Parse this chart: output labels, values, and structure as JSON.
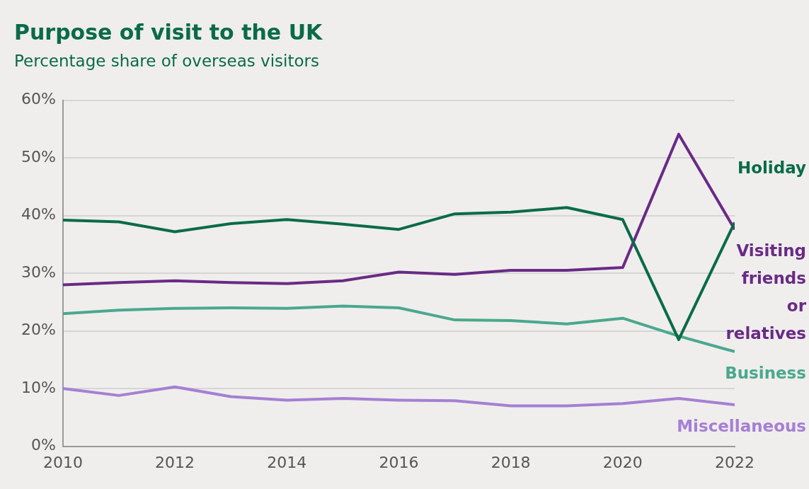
{
  "chart_data": {
    "type": "line",
    "title": "Purpose of visit to the UK",
    "subtitle": "Percentage share of overseas visitors",
    "x": [
      2010,
      2011,
      2012,
      2013,
      2014,
      2015,
      2016,
      2017,
      2018,
      2019,
      2020,
      2021,
      2022
    ],
    "xlim": [
      2010,
      2022
    ],
    "xticks": [
      2010,
      2012,
      2014,
      2016,
      2018,
      2020,
      2022
    ],
    "ylim": [
      0,
      60
    ],
    "yticks": [
      {
        "value": 0,
        "label": "0%"
      },
      {
        "value": 10,
        "label": "10%"
      },
      {
        "value": 20,
        "label": "20%"
      },
      {
        "value": 30,
        "label": "30%"
      },
      {
        "value": 40,
        "label": "40%"
      },
      {
        "value": 50,
        "label": "50%"
      },
      {
        "value": 60,
        "label": "60%"
      }
    ],
    "grid": "y",
    "legend": false,
    "marker": "none",
    "line_style": "solid",
    "series": [
      {
        "name": "Holiday",
        "color": "#0a6b49",
        "values": [
          39.2,
          38.9,
          37.2,
          38.6,
          39.3,
          38.5,
          37.6,
          40.3,
          40.6,
          41.4,
          39.3,
          18.5,
          38.8
        ]
      },
      {
        "name": "Visiting friends or relatives",
        "color": "#6a2a86",
        "values": [
          28.0,
          28.4,
          28.7,
          28.4,
          28.2,
          28.7,
          30.2,
          29.8,
          30.5,
          30.5,
          31.0,
          54.1,
          37.6
        ]
      },
      {
        "name": "Business",
        "color": "#4aa88e",
        "values": [
          23.0,
          23.6,
          23.9,
          24.0,
          23.9,
          24.3,
          24.0,
          21.9,
          21.8,
          21.2,
          22.2,
          19.1,
          16.4
        ]
      },
      {
        "name": "Miscellaneous",
        "color": "#a67fd4",
        "values": [
          10.0,
          8.8,
          10.3,
          8.6,
          8.0,
          8.3,
          8.0,
          7.9,
          7.0,
          7.0,
          7.4,
          8.3,
          7.2
        ]
      }
    ]
  }
}
